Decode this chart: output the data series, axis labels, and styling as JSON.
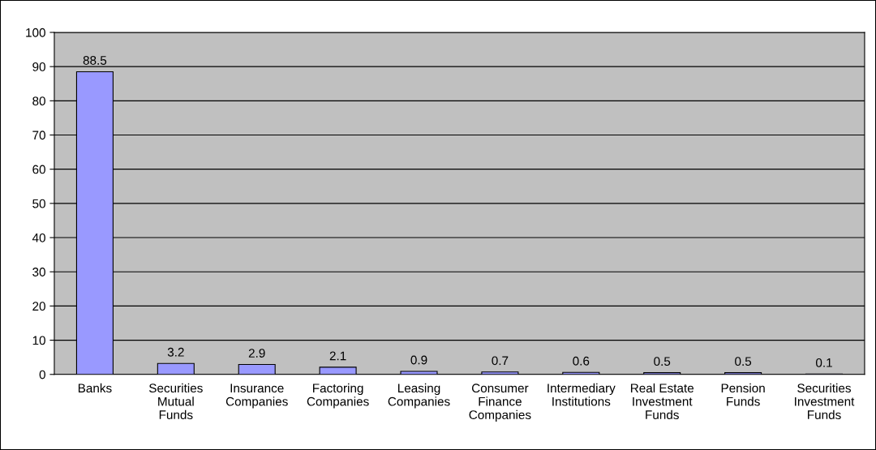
{
  "chart_data": {
    "type": "bar",
    "categories": [
      "Banks",
      "Securities\nMutual\nFunds",
      "Insurance\nCompanies",
      "Factoring\nCompanies",
      "Leasing\nCompanies",
      "Consumer\nFinance\nCompanies",
      "Intermediary\nInstitutions",
      "Real Estate\nInvestment\nFunds",
      "Pension\nFunds",
      "Securities\nInvestment\nFunds"
    ],
    "values": [
      88.5,
      3.2,
      2.9,
      2.1,
      0.9,
      0.7,
      0.6,
      0.5,
      0.5,
      0.1
    ],
    "color": "#9999ff",
    "ylim": [
      0,
      100
    ],
    "yticks": [
      0,
      10,
      20,
      30,
      40,
      50,
      60,
      70,
      80,
      90,
      100
    ],
    "grid": "y",
    "data_labels": true
  }
}
